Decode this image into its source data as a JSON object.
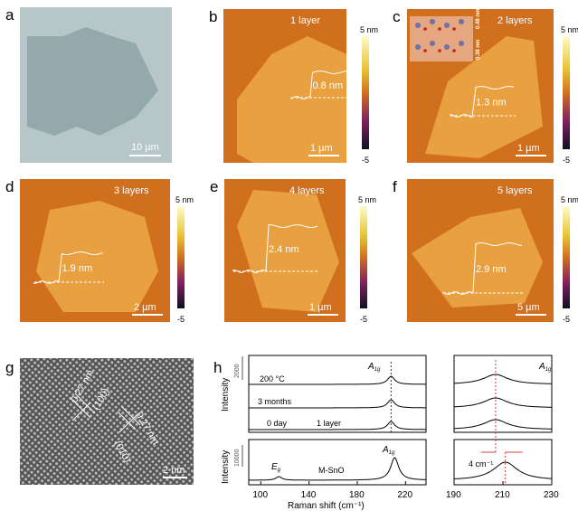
{
  "panels": {
    "a": {
      "label": "a",
      "scale": "10 µm"
    },
    "b": {
      "label": "b",
      "title": "1 layer",
      "height": "0.8 nm",
      "scale": "1 µm",
      "cb_top": "5 nm",
      "cb_bottom": "-5"
    },
    "c": {
      "label": "c",
      "title": "2 layers",
      "height": "1.3 nm",
      "scale": "1 µm",
      "cb_top": "5 nm",
      "cb_bottom": "-5",
      "inset_d1": "0.48 nm",
      "inset_d2": "0.38 nm"
    },
    "d": {
      "label": "d",
      "title": "3 layers",
      "height": "1.9 nm",
      "scale": "2 µm",
      "cb_top": "5 nm",
      "cb_bottom": "-5"
    },
    "e": {
      "label": "e",
      "title": "4 layers",
      "height": "2.4 nm",
      "scale": "1 µm",
      "cb_top": "5 nm",
      "cb_bottom": "-5"
    },
    "f": {
      "label": "f",
      "title": "5 layers",
      "height": "2.9 nm",
      "scale": "5 µm",
      "cb_top": "5 nm",
      "cb_bottom": "-5"
    },
    "g": {
      "label": "g",
      "d1": "0.27 nm",
      "p1": "(100)",
      "d2": "0.27 nm",
      "p2": "(010)",
      "scale": "2 nm"
    },
    "h": {
      "label": "h"
    }
  },
  "colors": {
    "afm_bg": "#d0701e",
    "afm_flake": "#e8a040",
    "ref_line": "#d04040"
  },
  "chart_data": {
    "type": "line",
    "xlabel": "Raman shift (cm⁻¹)",
    "ylabel": "Intensity",
    "left_xlim": [
      90,
      237
    ],
    "left_xticks": [
      "100",
      "140",
      "180",
      "220"
    ],
    "right_xlim": [
      190,
      230
    ],
    "right_xticks": [
      "190",
      "210",
      "230"
    ],
    "top_scale": "2000",
    "bottom_scale": "10000",
    "peak_label": "A1g",
    "eg_label": "Eg",
    "shift_label": "4 cm⁻¹",
    "top_series": [
      {
        "name": "200 °C",
        "center": 208,
        "width": 3.5,
        "amp": 9
      },
      {
        "name": "3 months",
        "center": 208,
        "width": 3.5,
        "amp": 9
      },
      {
        "name": "0 day",
        "center": 208,
        "width": 3.5,
        "amp": 9,
        "note": "1 layer"
      }
    ],
    "bottom_series": {
      "name": "M-SnO",
      "peaks": [
        {
          "center": 115,
          "width": 3,
          "amp": 4
        },
        {
          "center": 211,
          "width": 4,
          "amp": 25
        }
      ]
    },
    "ref_lines": [
      207,
      211
    ]
  }
}
